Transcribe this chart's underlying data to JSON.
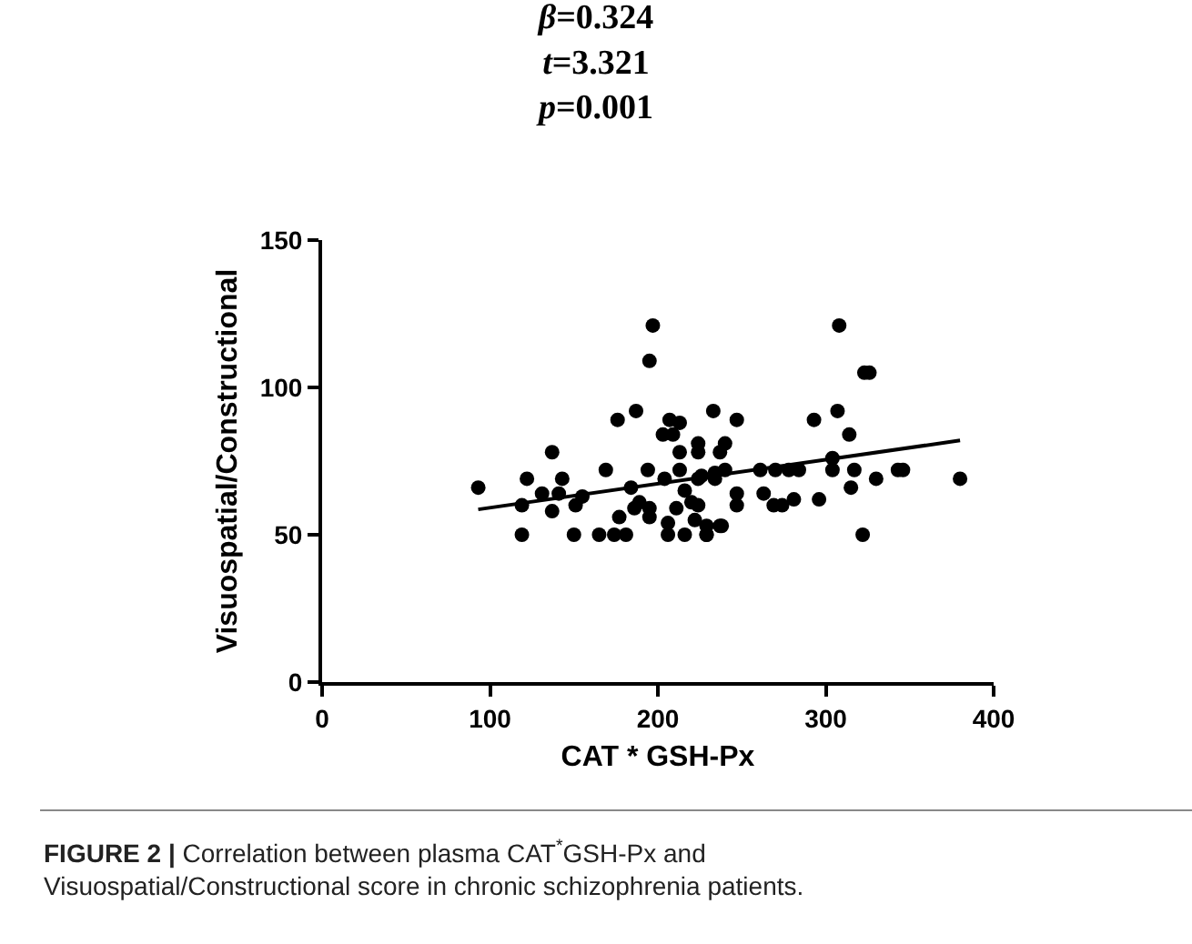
{
  "chart_data": {
    "type": "scatter",
    "title": "β=0.324\nt=3.321\np=0.001",
    "xlabel": "CAT * GSH-Px",
    "ylabel": "Visuospatial/Constructional",
    "annotations": [
      "FIGURE 2 | Correlation between plasma CAT$^{*}$GSH-Px and\nVisuospatial/Constructional score in chronic schizophrenia patients."
    ],
    "series": [
      {
        "color": "#000000",
        "marker": "circle",
        "x": [
          197,
          195,
          187,
          176,
          233,
          207,
          213,
          203,
          209,
          224,
          213,
          224,
          237,
          137,
          93,
          122,
          143,
          169,
          194,
          213,
          226,
          131,
          141,
          155,
          119,
          137,
          151,
          184,
          204,
          216,
          234,
          189,
          195,
          186,
          177,
          195,
          211,
          220,
          181,
          174,
          119,
          150,
          165,
          206,
          216,
          229,
          238,
          206,
          308,
          323,
          326,
          247,
          293,
          307,
          314,
          240,
          240,
          261,
          270,
          278,
          284,
          304,
          317,
          343,
          346,
          304,
          224,
          234,
          330,
          380,
          315,
          263,
          247,
          247,
          269,
          274,
          281,
          296,
          224,
          222,
          229,
          237,
          229,
          322
        ],
        "values": [
          121,
          109,
          92,
          89,
          92,
          89,
          88,
          84,
          84,
          81,
          78,
          78,
          78,
          78,
          66,
          69,
          69,
          72,
          72,
          72,
          70,
          64,
          64,
          63,
          60,
          58,
          60,
          66,
          69,
          65,
          71,
          61,
          59,
          59,
          56,
          56,
          59,
          61,
          50,
          50,
          50,
          50,
          50,
          50,
          50,
          50,
          53,
          54,
          121,
          105,
          105,
          89,
          89,
          92,
          84,
          81,
          72,
          72,
          72,
          72,
          72,
          72,
          72,
          72,
          72,
          76,
          69,
          69,
          69,
          69,
          66,
          64,
          64,
          60,
          60,
          60,
          62,
          62,
          60,
          55,
          53,
          53,
          50,
          50
        ]
      },
      {
        "type": "line",
        "color": "#000000",
        "line_style": "solid",
        "x": [
          93,
          380
        ],
        "values": [
          58.6,
          82
        ]
      }
    ],
    "xlim": [
      0,
      400
    ],
    "xticks": [
      0,
      100,
      200,
      300,
      400
    ],
    "ylim": [
      0,
      150
    ],
    "yticks": [
      0,
      50,
      100,
      150
    ],
    "grid": false
  }
}
